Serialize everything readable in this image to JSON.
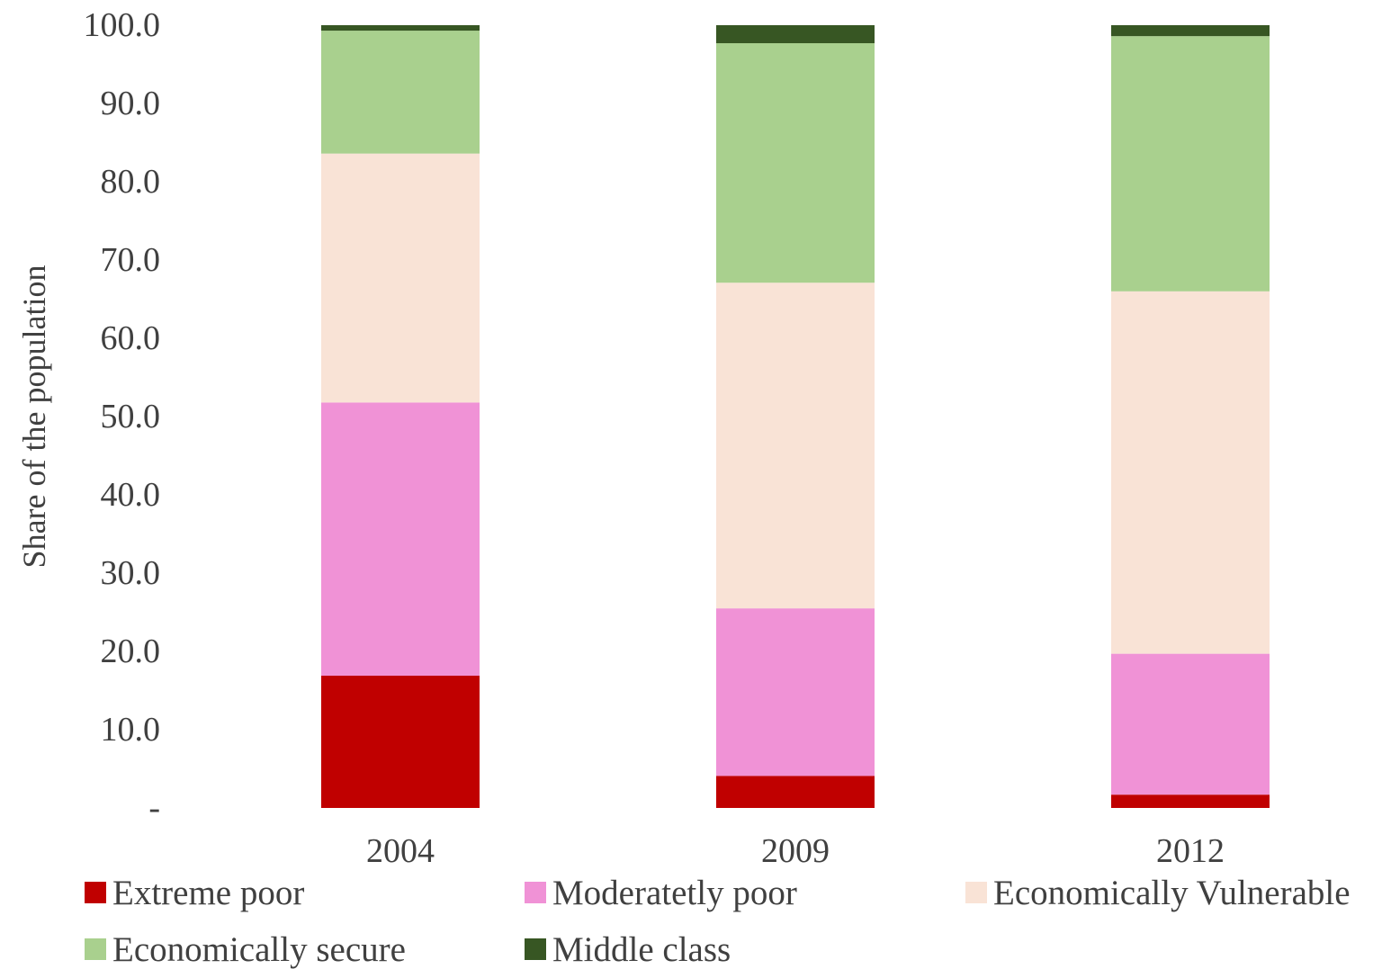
{
  "chart_data": {
    "type": "bar",
    "stacked": true,
    "ylabel": "Share of the population",
    "xlabel": "",
    "ylim": [
      0,
      100
    ],
    "yticks": [
      "-",
      "10.0",
      "20.0",
      "30.0",
      "40.0",
      "50.0",
      "60.0",
      "70.0",
      "80.0",
      "90.0",
      "100.0"
    ],
    "categories": [
      "2004",
      "2009",
      "2012"
    ],
    "series": [
      {
        "name": "Extreme poor",
        "color": "#c00000",
        "values": [
          16.9,
          4.1,
          1.7
        ]
      },
      {
        "name": "Moderatetly poor",
        "color": "#f092d6",
        "values": [
          34.9,
          21.4,
          18.0
        ]
      },
      {
        "name": "Economically Vulnerable",
        "color": "#f9e3d6",
        "values": [
          31.8,
          41.6,
          46.3
        ]
      },
      {
        "name": "Economically secure",
        "color": "#a9d08e",
        "values": [
          15.7,
          30.6,
          32.6
        ]
      },
      {
        "name": "Middle class",
        "color": "#375623",
        "values": [
          0.7,
          2.3,
          1.4
        ]
      }
    ],
    "legend_position": "bottom",
    "grid": false
  }
}
